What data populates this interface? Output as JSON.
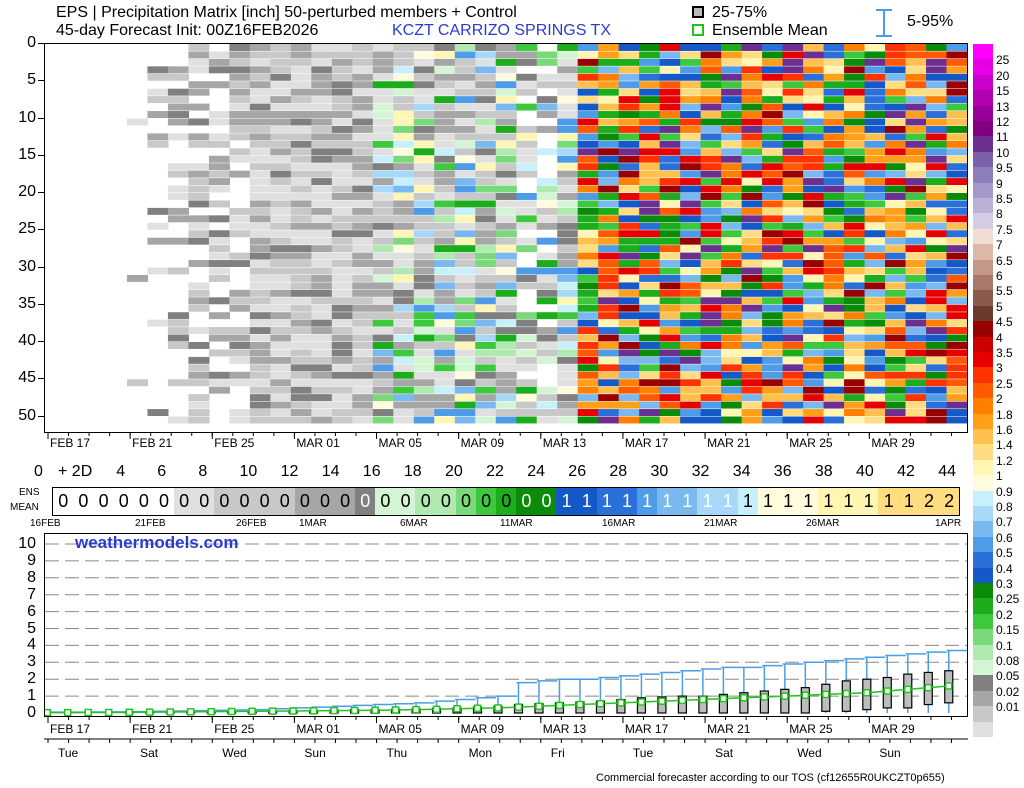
{
  "header": {
    "title": "EPS | Precipitation Matrix [inch]  50-perturbed members + Control",
    "subtitle": "45-day Forecast Init: 00Z16FEB2026",
    "station": "KCZT  CARRIZO SPRINGS TX",
    "legend_iqr": "25-75%",
    "legend_mean": "Ensemble Mean",
    "legend_range": "5-95%"
  },
  "colors": {
    "green_line": "#22c41c",
    "blue_whisker": "#4a9ee8",
    "brand_blue": "#2b3bd1"
  },
  "matrix": {
    "y_ticks": [
      "0",
      "5",
      "10",
      "15",
      "20",
      "25",
      "30",
      "35",
      "40",
      "45",
      "50"
    ],
    "x_date_ticks": [
      "FEB 17",
      "FEB 21",
      "FEB 25",
      "MAR 01",
      "MAR 05",
      "MAR 09",
      "MAR 13",
      "MAR 17",
      "MAR 21",
      "MAR 25",
      "MAR 29"
    ]
  },
  "day_axis": {
    "labels": [
      "0",
      "+ 2D",
      "4",
      "6",
      "8",
      "10",
      "12",
      "14",
      "16",
      "18",
      "20",
      "22",
      "24",
      "26",
      "28",
      "30",
      "32",
      "34",
      "36",
      "38",
      "40",
      "42",
      "44"
    ]
  },
  "ens_mean": {
    "label_top": "ENS",
    "label_bottom": "MEAN",
    "values": [
      "0",
      "0",
      "0",
      "0",
      "0",
      "0",
      "0",
      "0",
      "0",
      "0",
      "0",
      "0",
      "0",
      "0",
      "0",
      "0",
      "0",
      "0",
      "0",
      "0",
      "0",
      "0",
      "0",
      "0",
      "0",
      "1",
      "1",
      "1",
      "1",
      "1",
      "1",
      "1",
      "1",
      "1",
      "1",
      "1",
      "1",
      "1",
      "1",
      "1",
      "1",
      "1",
      "1",
      "2",
      "2"
    ],
    "date_labels": [
      "16FEB",
      "21FEB",
      "26FEB",
      "1MAR",
      "6MAR",
      "11MAR",
      "16MAR",
      "21MAR",
      "26MAR",
      "1APR"
    ]
  },
  "watermark": "weathermodels.com",
  "scale": {
    "labels": [
      "25",
      "20",
      "15",
      "13",
      "12",
      "11",
      "10",
      "9.5",
      "9",
      "8.5",
      "8",
      "7.5",
      "7",
      "6.5",
      "6",
      "5.5",
      "5",
      "4.5",
      "4",
      "3.5",
      "3",
      "2.5",
      "2",
      "1.8",
      "1.6",
      "1.4",
      "1.2",
      "1",
      "0.9",
      "0.8",
      "0.7",
      "0.6",
      "0.5",
      "0.4",
      "0.3",
      "0.25",
      "0.2",
      "0.15",
      "0.1",
      "0.08",
      "0.05",
      "0.02",
      "0.01"
    ],
    "colors": [
      "#ff00ff",
      "#e600e6",
      "#cc00cc",
      "#b300b3",
      "#990099",
      "#800080",
      "#6b2f8f",
      "#7b62a8",
      "#8e7dbb",
      "#a497c9",
      "#bbb0d8",
      "#d4cbe5",
      "#f0dcd0",
      "#ddb8a8",
      "#c49888",
      "#a87868",
      "#8a5a4a",
      "#6b3a2a",
      "#990000",
      "#cc0000",
      "#e60000",
      "#ff3300",
      "#ff5a00",
      "#ff7f00",
      "#ff9f1a",
      "#ffc04d",
      "#ffdd80",
      "#fff6b3",
      "#fffbdd",
      "#c6f0fa",
      "#a8d8f8",
      "#7ab8f0",
      "#4e9ce8",
      "#2a70d8",
      "#1558c8",
      "#0a8c0a",
      "#1cad1c",
      "#3ec83e",
      "#7ad97a",
      "#b0eab0",
      "#d4f5d4",
      "#808080",
      "#a6a6a6",
      "#c8c8c8",
      "#e0e0e0"
    ]
  },
  "chart_data": {
    "type": "line",
    "title": "EPS | Precipitation Matrix [inch]  50-perturbed members + Control",
    "x_tick_labels": [
      "FEB 17",
      "FEB 21",
      "FEB 25",
      "MAR 01",
      "MAR 05",
      "MAR 09",
      "MAR 13",
      "MAR 17",
      "MAR 21",
      "MAR 25",
      "MAR 29"
    ],
    "weekday_labels": [
      "Tue",
      "Sat",
      "Wed",
      "Sun",
      "Thu",
      "Mon",
      "Fri",
      "Tue",
      "Sat",
      "Wed",
      "Sun"
    ],
    "y_ticks": [
      0,
      1,
      2,
      3,
      4,
      5,
      6,
      7,
      8,
      9,
      10
    ],
    "ylim": [
      0,
      10
    ],
    "x_days": [
      1,
      2,
      3,
      4,
      5,
      6,
      7,
      8,
      9,
      10,
      11,
      12,
      13,
      14,
      15,
      16,
      17,
      18,
      19,
      20,
      21,
      22,
      23,
      24,
      25,
      26,
      27,
      28,
      29,
      30,
      31,
      32,
      33,
      34,
      35,
      36,
      37,
      38,
      39,
      40,
      41,
      42,
      43,
      44,
      45
    ],
    "series": [
      {
        "name": "Ensemble Mean",
        "values": [
          0.02,
          0.02,
          0.03,
          0.03,
          0.04,
          0.05,
          0.06,
          0.07,
          0.08,
          0.09,
          0.1,
          0.11,
          0.12,
          0.13,
          0.14,
          0.15,
          0.16,
          0.18,
          0.2,
          0.22,
          0.25,
          0.28,
          0.3,
          0.35,
          0.4,
          0.45,
          0.5,
          0.55,
          0.6,
          0.65,
          0.7,
          0.75,
          0.8,
          0.85,
          0.9,
          0.95,
          1.0,
          1.05,
          1.1,
          1.15,
          1.2,
          1.3,
          1.4,
          1.5,
          1.6
        ]
      },
      {
        "name": "5-95%",
        "values": [
          0.05,
          0.05,
          0.06,
          0.07,
          0.08,
          0.1,
          0.12,
          0.14,
          0.16,
          0.18,
          0.2,
          0.25,
          0.3,
          0.35,
          0.4,
          0.45,
          0.5,
          0.55,
          0.6,
          0.7,
          0.8,
          0.9,
          1.0,
          1.8,
          1.9,
          2.0,
          2.0,
          2.1,
          2.2,
          2.3,
          2.4,
          2.5,
          2.6,
          2.7,
          2.7,
          2.8,
          2.9,
          3.0,
          3.1,
          3.2,
          3.3,
          3.4,
          3.5,
          3.6,
          3.7
        ]
      }
    ],
    "box_iqr": {
      "q25": [
        0,
        0,
        0,
        0,
        0,
        0,
        0,
        0,
        0,
        0,
        0,
        0,
        0,
        0,
        0,
        0,
        0,
        0,
        0,
        0,
        0,
        0,
        0,
        0,
        0,
        0,
        0,
        0,
        0,
        0,
        0,
        0,
        0,
        0,
        0,
        0,
        0,
        0,
        0.1,
        0.1,
        0.2,
        0.3,
        0.3,
        0.5,
        0.6
      ],
      "q75": [
        0,
        0,
        0,
        0,
        0.05,
        0.05,
        0.06,
        0.07,
        0.08,
        0.09,
        0.1,
        0.12,
        0.14,
        0.15,
        0.18,
        0.2,
        0.2,
        0.22,
        0.25,
        0.28,
        0.3,
        0.35,
        0.4,
        0.5,
        0.55,
        0.6,
        0.65,
        0.7,
        0.8,
        0.9,
        0.95,
        1.0,
        1.0,
        1.1,
        1.2,
        1.3,
        1.4,
        1.5,
        1.7,
        1.9,
        2.0,
        2.1,
        2.3,
        2.4,
        2.5
      ]
    }
  },
  "footer": {
    "tos": "Commercial forecaster according to our TOS (cf12655R0UKCZT0p655)"
  }
}
